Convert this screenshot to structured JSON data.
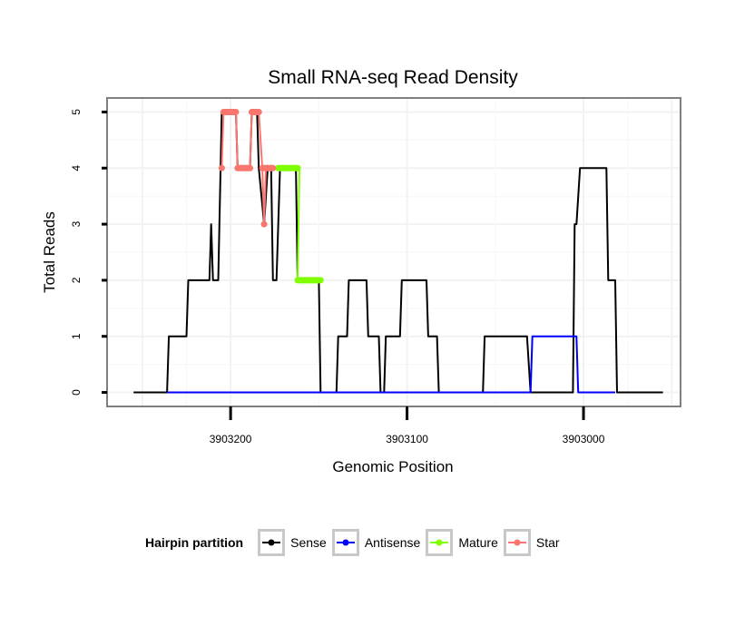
{
  "chart_data": {
    "type": "line",
    "title": "Small RNA-seq Read Density",
    "xlabel": "Genomic Position",
    "ylabel": "Total Reads",
    "x_reversed": true,
    "xlim": [
      3902945,
      3903270
    ],
    "ylim": [
      -0.25,
      5.25
    ],
    "x_ticks": [
      3903200,
      3903100,
      3903000
    ],
    "x_tick_labels": [
      "3903200",
      "3903100",
      "3903000"
    ],
    "y_ticks": [
      0,
      1,
      2,
      3,
      4,
      5
    ],
    "y_tick_labels": [
      "0",
      "1",
      "2",
      "3",
      "4",
      "5"
    ],
    "grid": true,
    "series": [
      {
        "name": "Sense",
        "color": "#000000",
        "points": [
          [
            3903255,
            0
          ],
          [
            3903236,
            0
          ],
          [
            3903235,
            1
          ],
          [
            3903225,
            1
          ],
          [
            3903224,
            2
          ],
          [
            3903212,
            2
          ],
          [
            3903211,
            3
          ],
          [
            3903210,
            2
          ],
          [
            3903207,
            2
          ],
          [
            3903205,
            5
          ],
          [
            3903197,
            5
          ],
          [
            3903196,
            4
          ],
          [
            3903189,
            4
          ],
          [
            3903188,
            5
          ],
          [
            3903185,
            5
          ],
          [
            3903184,
            4
          ],
          [
            3903181,
            3
          ],
          [
            3903179,
            4
          ],
          [
            3903177,
            4
          ],
          [
            3903176,
            2
          ],
          [
            3903174,
            2
          ],
          [
            3903172,
            4
          ],
          [
            3903163,
            4
          ],
          [
            3903162,
            2
          ],
          [
            3903150,
            2
          ],
          [
            3903149,
            0
          ],
          [
            3903140,
            0
          ],
          [
            3903139,
            1
          ],
          [
            3903134,
            1
          ],
          [
            3903133,
            2
          ],
          [
            3903123,
            2
          ],
          [
            3903122,
            1
          ],
          [
            3903116,
            1
          ],
          [
            3903115,
            0
          ],
          [
            3903113,
            0
          ],
          [
            3903112,
            1
          ],
          [
            3903104,
            1
          ],
          [
            3903103,
            2
          ],
          [
            3903089,
            2
          ],
          [
            3903088,
            1
          ],
          [
            3903083,
            1
          ],
          [
            3903082,
            0
          ],
          [
            3903057,
            0
          ],
          [
            3903056,
            1
          ],
          [
            3903032,
            1
          ],
          [
            3903030,
            0
          ],
          [
            3903006,
            0
          ],
          [
            3903005,
            3
          ],
          [
            3903004,
            3
          ],
          [
            3903002,
            4
          ],
          [
            3902987,
            4
          ],
          [
            3902986,
            2
          ],
          [
            3902982,
            2
          ],
          [
            3902981,
            0
          ],
          [
            3902955,
            0
          ]
        ]
      },
      {
        "name": "Antisense",
        "color": "#0000ff",
        "points": [
          [
            3903236,
            0
          ],
          [
            3903030,
            0
          ],
          [
            3903029,
            1
          ],
          [
            3903004,
            1
          ],
          [
            3903003,
            0
          ],
          [
            3902982,
            0
          ]
        ]
      },
      {
        "name": "Mature",
        "color": "#7fff00",
        "points": [
          [
            3903173,
            4
          ],
          [
            3903161,
            4
          ],
          [
            3903162,
            2
          ],
          [
            3903149,
            2
          ]
        ],
        "marker_ranges": [
          [
            3903173,
            3903162,
            4
          ],
          [
            3903162,
            3903149,
            2
          ]
        ]
      },
      {
        "name": "Star",
        "color": "#f8766d",
        "points": [
          [
            3903205,
            4
          ],
          [
            3903204,
            5
          ],
          [
            3903197,
            5
          ],
          [
            3903196,
            4
          ],
          [
            3903189,
            4
          ],
          [
            3903188,
            5
          ],
          [
            3903184,
            5
          ],
          [
            3903182,
            4
          ],
          [
            3903181,
            3
          ],
          [
            3903180,
            4
          ],
          [
            3903176,
            4
          ]
        ],
        "marker_ranges": [
          [
            3903204,
            3903197,
            5
          ],
          [
            3903196,
            3903189,
            4
          ],
          [
            3903188,
            3903184,
            5
          ],
          [
            3903182,
            3903176,
            4
          ]
        ],
        "marker_points": [
          [
            3903205,
            4
          ],
          [
            3903181,
            3
          ]
        ]
      }
    ]
  },
  "legend": {
    "title": "Hairpin partition",
    "items": [
      {
        "label": "Sense",
        "color": "#000000"
      },
      {
        "label": "Antisense",
        "color": "#0000ff"
      },
      {
        "label": "Mature",
        "color": "#7fff00"
      },
      {
        "label": "Star",
        "color": "#f8766d"
      }
    ]
  }
}
